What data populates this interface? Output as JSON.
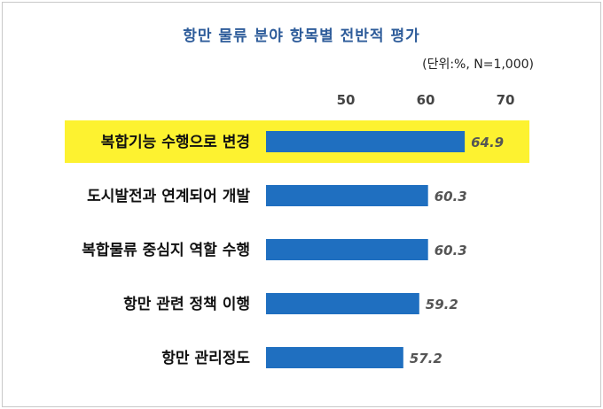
{
  "chart_data": {
    "type": "bar",
    "orientation": "horizontal",
    "title": "항만 물류 분야 항목별 전반적 평가",
    "unit_note": "(단위:%,  N=1,000)",
    "categories": [
      "복합기능 수행으로 변경",
      "도시발전과 연계되어 개발",
      "복합물류 중심지 역할 수행",
      "항만 관련 정책 이행",
      "항만 관리정도"
    ],
    "values": [
      64.9,
      60.3,
      60.3,
      59.2,
      57.2
    ],
    "value_labels": [
      "64.9",
      "60.3",
      "60.3",
      "59.2",
      "57.2"
    ],
    "xticks": [
      "50",
      "60",
      "70"
    ],
    "tick_values": [
      50,
      60,
      70
    ],
    "xlim": [
      40,
      70
    ],
    "highlight_index": 0,
    "colors": {
      "bar": "#1f6fc0",
      "highlight": "#fdf230",
      "title": "#2e5c9a"
    },
    "grid": false
  }
}
